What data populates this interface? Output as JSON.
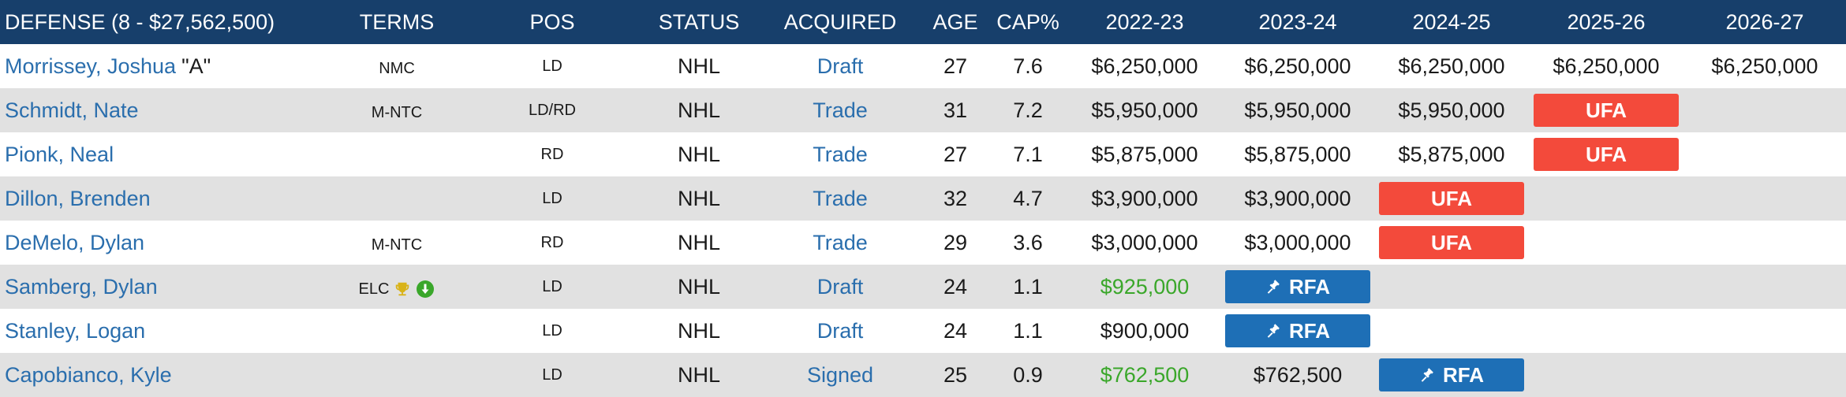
{
  "header": {
    "defense": "DEFENSE (8 - $27,562,500)",
    "terms": "TERMS",
    "pos": "POS",
    "status": "STATUS",
    "acquired": "ACQUIRED",
    "age": "AGE",
    "cap": "CAP%",
    "y1": "2022-23",
    "y2": "2023-24",
    "y3": "2024-25",
    "y4": "2025-26",
    "y5": "2026-27"
  },
  "colors": {
    "header_bg": "#173f6b",
    "link": "#2a6ead",
    "ufa": "#f34a3b",
    "rfa": "#1e6fb6",
    "green": "#3aa72a"
  },
  "rows": [
    {
      "name": "Morrissey, Joshua",
      "tag": "\"A\"",
      "terms": "NMC",
      "pos": "LD",
      "status": "NHL",
      "acquired": "Draft",
      "age": "27",
      "cap": "7.6",
      "years": [
        {
          "kind": "money",
          "text": "$6,250,000"
        },
        {
          "kind": "money",
          "text": "$6,250,000"
        },
        {
          "kind": "money",
          "text": "$6,250,000"
        },
        {
          "kind": "money",
          "text": "$6,250,000"
        },
        {
          "kind": "money",
          "text": "$6,250,000"
        }
      ]
    },
    {
      "name": "Schmidt, Nate",
      "terms": "M-NTC",
      "pos": "LD/RD",
      "status": "NHL",
      "acquired": "Trade",
      "age": "31",
      "cap": "7.2",
      "years": [
        {
          "kind": "money",
          "text": "$5,950,000"
        },
        {
          "kind": "money",
          "text": "$5,950,000"
        },
        {
          "kind": "money",
          "text": "$5,950,000"
        },
        {
          "kind": "ufa",
          "text": "UFA"
        },
        {
          "kind": "empty",
          "text": ""
        }
      ]
    },
    {
      "name": "Pionk, Neal",
      "terms": "",
      "pos": "RD",
      "status": "NHL",
      "acquired": "Trade",
      "age": "27",
      "cap": "7.1",
      "years": [
        {
          "kind": "money",
          "text": "$5,875,000"
        },
        {
          "kind": "money",
          "text": "$5,875,000"
        },
        {
          "kind": "money",
          "text": "$5,875,000"
        },
        {
          "kind": "ufa",
          "text": "UFA"
        },
        {
          "kind": "empty",
          "text": ""
        }
      ]
    },
    {
      "name": "Dillon, Brenden",
      "terms": "",
      "pos": "LD",
      "status": "NHL",
      "acquired": "Trade",
      "age": "32",
      "cap": "4.7",
      "years": [
        {
          "kind": "money",
          "text": "$3,900,000"
        },
        {
          "kind": "money",
          "text": "$3,900,000"
        },
        {
          "kind": "ufa",
          "text": "UFA"
        },
        {
          "kind": "empty",
          "text": ""
        },
        {
          "kind": "empty",
          "text": ""
        }
      ]
    },
    {
      "name": "DeMelo, Dylan",
      "terms": "M-NTC",
      "pos": "RD",
      "status": "NHL",
      "acquired": "Trade",
      "age": "29",
      "cap": "3.6",
      "years": [
        {
          "kind": "money",
          "text": "$3,000,000"
        },
        {
          "kind": "money",
          "text": "$3,000,000"
        },
        {
          "kind": "ufa",
          "text": "UFA"
        },
        {
          "kind": "empty",
          "text": ""
        },
        {
          "kind": "empty",
          "text": ""
        }
      ]
    },
    {
      "name": "Samberg, Dylan",
      "terms": "ELC",
      "terms_icons": [
        "trophy-icon",
        "down-arrow-circle-icon"
      ],
      "pos": "LD",
      "status": "NHL",
      "acquired": "Draft",
      "age": "24",
      "cap": "1.1",
      "years": [
        {
          "kind": "money-green",
          "text": "$925,000"
        },
        {
          "kind": "rfa",
          "text": "RFA"
        },
        {
          "kind": "empty",
          "text": ""
        },
        {
          "kind": "empty",
          "text": ""
        },
        {
          "kind": "empty",
          "text": ""
        }
      ]
    },
    {
      "name": "Stanley, Logan",
      "terms": "",
      "pos": "LD",
      "status": "NHL",
      "acquired": "Draft",
      "age": "24",
      "cap": "1.1",
      "years": [
        {
          "kind": "money",
          "text": "$900,000"
        },
        {
          "kind": "rfa",
          "text": "RFA"
        },
        {
          "kind": "empty",
          "text": ""
        },
        {
          "kind": "empty",
          "text": ""
        },
        {
          "kind": "empty",
          "text": ""
        }
      ]
    },
    {
      "name": "Capobianco, Kyle",
      "terms": "",
      "pos": "LD",
      "status": "NHL",
      "acquired": "Signed",
      "age": "25",
      "cap": "0.9",
      "years": [
        {
          "kind": "money-green",
          "text": "$762,500"
        },
        {
          "kind": "money",
          "text": "$762,500"
        },
        {
          "kind": "rfa",
          "text": "RFA"
        },
        {
          "kind": "empty",
          "text": ""
        },
        {
          "kind": "empty",
          "text": ""
        }
      ]
    }
  ]
}
